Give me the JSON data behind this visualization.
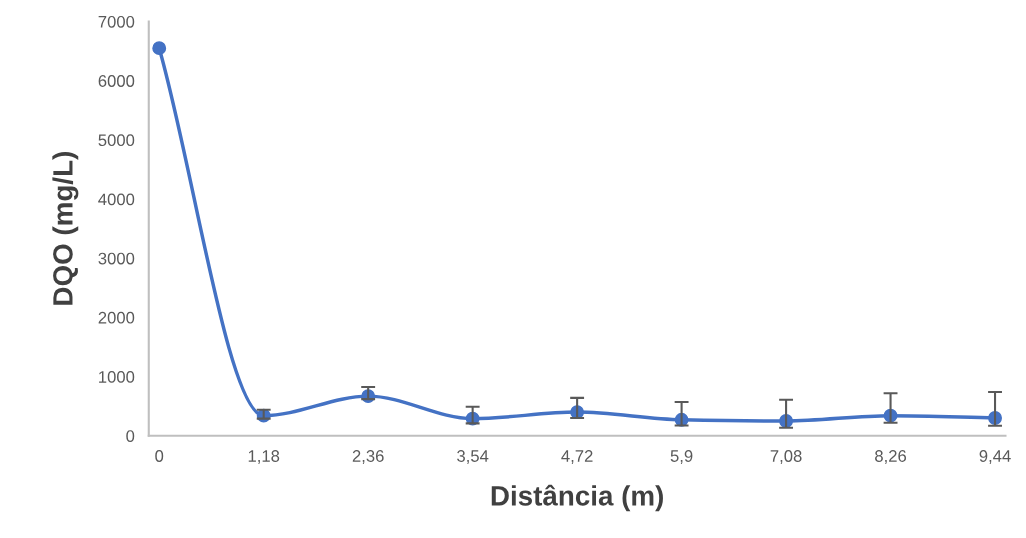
{
  "chart_data": {
    "type": "line",
    "xlabel": "Distância (m)",
    "ylabel": "DQO (mg/L)",
    "categories": [
      "0",
      "1,18",
      "2,36",
      "3,54",
      "4,72",
      "5,9",
      "7,08",
      "8,26",
      "9,44"
    ],
    "series": [
      {
        "color": "#4472c4",
        "values": [
          6550,
          340,
          670,
          290,
          400,
          270,
          250,
          340,
          300
        ],
        "errors": [
          null,
          [
            290,
            440
          ],
          [
            620,
            825
          ],
          [
            210,
            490
          ],
          [
            300,
            640
          ],
          [
            175,
            570
          ],
          [
            135,
            610
          ],
          [
            220,
            720
          ],
          [
            170,
            740
          ]
        ]
      }
    ],
    "ylim": [
      0,
      7000
    ],
    "yticks": [
      0,
      1000,
      2000,
      3000,
      4000,
      5000,
      6000,
      7000
    ],
    "grid": false,
    "marker": "circle",
    "line_style": "solid"
  }
}
